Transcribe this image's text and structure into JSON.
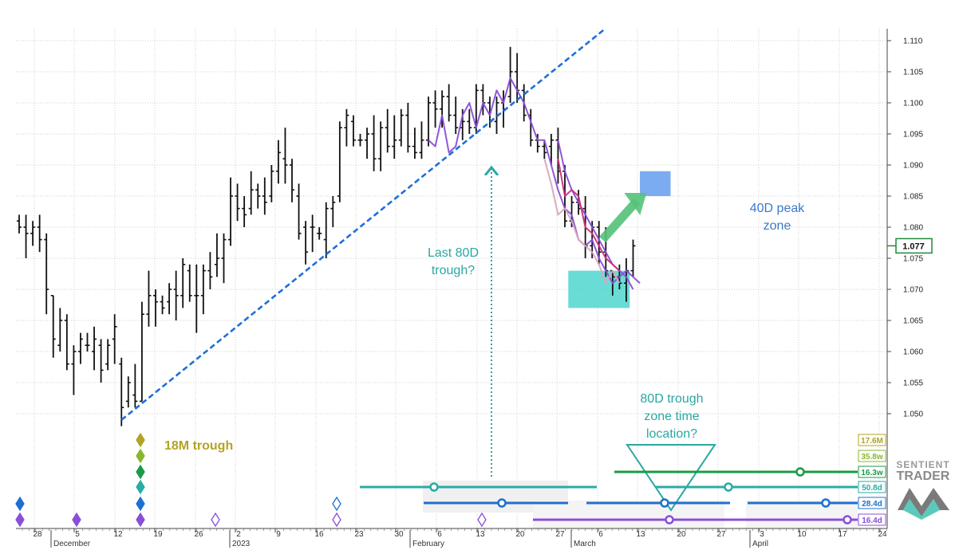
{
  "chart_data": {
    "type": "ohlc",
    "ylim": [
      1.046,
      1.112
    ],
    "y_ticks": [
      "1.050",
      "1.055",
      "1.060",
      "1.065",
      "1.070",
      "1.075",
      "1.080",
      "1.085",
      "1.090",
      "1.095",
      "1.100",
      "1.105",
      "1.110"
    ],
    "current_price": "1.077",
    "x_day_ticks": [
      "28",
      "5",
      "12",
      "19",
      "26",
      "2",
      "9",
      "16",
      "23",
      "30",
      "6",
      "13",
      "20",
      "27",
      "6",
      "13",
      "20",
      "27",
      "3",
      "10",
      "17",
      "24"
    ],
    "month_labels": [
      "December",
      "2023",
      "February",
      "March",
      "April"
    ],
    "bars": [
      {
        "o": 1.081,
        "h": 1.082,
        "l": 1.079,
        "c": 1.08
      },
      {
        "o": 1.08,
        "h": 1.082,
        "l": 1.075,
        "c": 1.079
      },
      {
        "o": 1.079,
        "h": 1.081,
        "l": 1.077,
        "c": 1.08
      },
      {
        "o": 1.08,
        "h": 1.082,
        "l": 1.076,
        "c": 1.078
      },
      {
        "o": 1.078,
        "h": 1.079,
        "l": 1.066,
        "c": 1.07
      },
      {
        "o": 1.069,
        "h": 1.069,
        "l": 1.059,
        "c": 1.062
      },
      {
        "o": 1.061,
        "h": 1.067,
        "l": 1.06,
        "c": 1.065
      },
      {
        "o": 1.065,
        "h": 1.066,
        "l": 1.057,
        "c": 1.058
      },
      {
        "o": 1.058,
        "h": 1.061,
        "l": 1.053,
        "c": 1.06
      },
      {
        "o": 1.06,
        "h": 1.063,
        "l": 1.058,
        "c": 1.062
      },
      {
        "o": 1.061,
        "h": 1.063,
        "l": 1.06,
        "c": 1.061
      },
      {
        "o": 1.06,
        "h": 1.064,
        "l": 1.057,
        "c": 1.062
      },
      {
        "o": 1.061,
        "h": 1.062,
        "l": 1.055,
        "c": 1.057
      },
      {
        "o": 1.058,
        "h": 1.062,
        "l": 1.057,
        "c": 1.061
      },
      {
        "o": 1.062,
        "h": 1.066,
        "l": 1.058,
        "c": 1.064
      },
      {
        "o": 1.058,
        "h": 1.059,
        "l": 1.048,
        "c": 1.051
      },
      {
        "o": 1.052,
        "h": 1.056,
        "l": 1.051,
        "c": 1.055
      },
      {
        "o": 1.053,
        "h": 1.058,
        "l": 1.051,
        "c": 1.052
      },
      {
        "o": 1.052,
        "h": 1.068,
        "l": 1.052,
        "c": 1.066
      },
      {
        "o": 1.066,
        "h": 1.073,
        "l": 1.064,
        "c": 1.069
      },
      {
        "o": 1.069,
        "h": 1.07,
        "l": 1.064,
        "c": 1.068
      },
      {
        "o": 1.068,
        "h": 1.069,
        "l": 1.066,
        "c": 1.067
      },
      {
        "o": 1.068,
        "h": 1.071,
        "l": 1.066,
        "c": 1.07
      },
      {
        "o": 1.07,
        "h": 1.073,
        "l": 1.065,
        "c": 1.069
      },
      {
        "o": 1.069,
        "h": 1.075,
        "l": 1.067,
        "c": 1.074
      },
      {
        "o": 1.073,
        "h": 1.074,
        "l": 1.068,
        "c": 1.069
      },
      {
        "o": 1.069,
        "h": 1.074,
        "l": 1.063,
        "c": 1.069
      },
      {
        "o": 1.069,
        "h": 1.074,
        "l": 1.066,
        "c": 1.073
      },
      {
        "o": 1.073,
        "h": 1.076,
        "l": 1.07,
        "c": 1.072
      },
      {
        "o": 1.074,
        "h": 1.079,
        "l": 1.072,
        "c": 1.075
      },
      {
        "o": 1.075,
        "h": 1.079,
        "l": 1.071,
        "c": 1.078
      },
      {
        "o": 1.078,
        "h": 1.088,
        "l": 1.077,
        "c": 1.085
      },
      {
        "o": 1.085,
        "h": 1.087,
        "l": 1.081,
        "c": 1.083
      },
      {
        "o": 1.083,
        "h": 1.085,
        "l": 1.08,
        "c": 1.082
      },
      {
        "o": 1.083,
        "h": 1.089,
        "l": 1.082,
        "c": 1.086
      },
      {
        "o": 1.086,
        "h": 1.087,
        "l": 1.083,
        "c": 1.085
      },
      {
        "o": 1.085,
        "h": 1.088,
        "l": 1.082,
        "c": 1.084
      },
      {
        "o": 1.085,
        "h": 1.09,
        "l": 1.084,
        "c": 1.089
      },
      {
        "o": 1.089,
        "h": 1.094,
        "l": 1.087,
        "c": 1.092
      },
      {
        "o": 1.091,
        "h": 1.096,
        "l": 1.087,
        "c": 1.09
      },
      {
        "o": 1.09,
        "h": 1.091,
        "l": 1.084,
        "c": 1.086
      },
      {
        "o": 1.085,
        "h": 1.087,
        "l": 1.078,
        "c": 1.079
      },
      {
        "o": 1.08,
        "h": 1.081,
        "l": 1.074,
        "c": 1.076
      },
      {
        "o": 1.08,
        "h": 1.082,
        "l": 1.076,
        "c": 1.08
      },
      {
        "o": 1.079,
        "h": 1.08,
        "l": 1.078,
        "c": 1.079
      },
      {
        "o": 1.078,
        "h": 1.084,
        "l": 1.075,
        "c": 1.083
      },
      {
        "o": 1.083,
        "h": 1.085,
        "l": 1.08,
        "c": 1.084
      },
      {
        "o": 1.085,
        "h": 1.097,
        "l": 1.084,
        "c": 1.096
      },
      {
        "o": 1.096,
        "h": 1.099,
        "l": 1.093,
        "c": 1.098
      },
      {
        "o": 1.097,
        "h": 1.098,
        "l": 1.093,
        "c": 1.094
      },
      {
        "o": 1.094,
        "h": 1.095,
        "l": 1.093,
        "c": 1.094
      },
      {
        "o": 1.094,
        "h": 1.096,
        "l": 1.091,
        "c": 1.095
      },
      {
        "o": 1.095,
        "h": 1.098,
        "l": 1.089,
        "c": 1.091
      },
      {
        "o": 1.091,
        "h": 1.097,
        "l": 1.089,
        "c": 1.096
      },
      {
        "o": 1.096,
        "h": 1.099,
        "l": 1.092,
        "c": 1.093
      },
      {
        "o": 1.093,
        "h": 1.098,
        "l": 1.091,
        "c": 1.094
      },
      {
        "o": 1.094,
        "h": 1.099,
        "l": 1.093,
        "c": 1.098
      },
      {
        "o": 1.098,
        "h": 1.1,
        "l": 1.092,
        "c": 1.093
      },
      {
        "o": 1.093,
        "h": 1.096,
        "l": 1.091,
        "c": 1.092
      },
      {
        "o": 1.092,
        "h": 1.097,
        "l": 1.091,
        "c": 1.094
      },
      {
        "o": 1.094,
        "h": 1.101,
        "l": 1.093,
        "c": 1.1
      },
      {
        "o": 1.1,
        "h": 1.102,
        "l": 1.096,
        "c": 1.099
      },
      {
        "o": 1.099,
        "h": 1.102,
        "l": 1.096,
        "c": 1.101
      },
      {
        "o": 1.101,
        "h": 1.103,
        "l": 1.097,
        "c": 1.098
      },
      {
        "o": 1.098,
        "h": 1.101,
        "l": 1.095,
        "c": 1.096
      },
      {
        "o": 1.096,
        "h": 1.099,
        "l": 1.094,
        "c": 1.097
      },
      {
        "o": 1.097,
        "h": 1.099,
        "l": 1.095,
        "c": 1.096
      },
      {
        "o": 1.096,
        "h": 1.103,
        "l": 1.095,
        "c": 1.102
      },
      {
        "o": 1.102,
        "h": 1.103,
        "l": 1.098,
        "c": 1.1
      },
      {
        "o": 1.1,
        "h": 1.101,
        "l": 1.096,
        "c": 1.097
      },
      {
        "o": 1.097,
        "h": 1.101,
        "l": 1.095,
        "c": 1.1
      },
      {
        "o": 1.1,
        "h": 1.102,
        "l": 1.096,
        "c": 1.099
      },
      {
        "o": 1.101,
        "h": 1.109,
        "l": 1.1,
        "c": 1.105
      },
      {
        "o": 1.105,
        "h": 1.108,
        "l": 1.1,
        "c": 1.102
      },
      {
        "o": 1.102,
        "h": 1.103,
        "l": 1.097,
        "c": 1.098
      },
      {
        "o": 1.098,
        "h": 1.099,
        "l": 1.093,
        "c": 1.094
      },
      {
        "o": 1.094,
        "h": 1.095,
        "l": 1.092,
        "c": 1.093
      },
      {
        "o": 1.093,
        "h": 1.094,
        "l": 1.091,
        "c": 1.092
      },
      {
        "o": 1.093,
        "h": 1.095,
        "l": 1.09,
        "c": 1.094
      },
      {
        "o": 1.094,
        "h": 1.096,
        "l": 1.087,
        "c": 1.089
      },
      {
        "o": 1.089,
        "h": 1.09,
        "l": 1.08,
        "c": 1.081
      },
      {
        "o": 1.081,
        "h": 1.085,
        "l": 1.08,
        "c": 1.084
      },
      {
        "o": 1.084,
        "h": 1.086,
        "l": 1.082,
        "c": 1.083
      },
      {
        "o": 1.083,
        "h": 1.085,
        "l": 1.075,
        "c": 1.077
      },
      {
        "o": 1.077,
        "h": 1.081,
        "l": 1.075,
        "c": 1.08
      },
      {
        "o": 1.08,
        "h": 1.081,
        "l": 1.074,
        "c": 1.076
      },
      {
        "o": 1.076,
        "h": 1.08,
        "l": 1.072,
        "c": 1.073
      },
      {
        "o": 1.073,
        "h": 1.073,
        "l": 1.069,
        "c": 1.072
      },
      {
        "o": 1.072,
        "h": 1.074,
        "l": 1.07,
        "c": 1.071
      },
      {
        "o": 1.071,
        "h": 1.075,
        "l": 1.068,
        "c": 1.073
      },
      {
        "o": 1.073,
        "h": 1.078,
        "l": 1.072,
        "c": 1.077
      }
    ],
    "trendline": {
      "from": [
        15,
        1.049
      ],
      "to": [
        86,
        1.112
      ],
      "color": "#1e6fd9",
      "style": "dashed"
    },
    "projections": [
      {
        "color": "#8a4fd6",
        "points": [
          [
            60,
            1.094
          ],
          [
            61,
            1.093
          ],
          [
            62,
            1.098
          ],
          [
            63,
            1.092
          ],
          [
            64,
            1.093
          ],
          [
            65,
            1.098
          ],
          [
            66,
            1.1
          ],
          [
            67,
            1.096
          ],
          [
            68,
            1.1
          ],
          [
            69,
            1.098
          ],
          [
            70,
            1.102
          ],
          [
            71,
            1.1
          ],
          [
            72,
            1.104
          ],
          [
            73,
            1.102
          ],
          [
            74,
            1.1
          ],
          [
            75,
            1.097
          ],
          [
            76,
            1.094
          ],
          [
            77,
            1.094
          ],
          [
            78,
            1.09
          ],
          [
            79,
            1.086
          ],
          [
            80,
            1.083
          ],
          [
            81,
            1.082
          ],
          [
            82,
            1.078
          ],
          [
            83,
            1.077
          ],
          [
            84,
            1.078
          ],
          [
            85,
            1.075
          ],
          [
            86,
            1.073
          ],
          [
            87,
            1.071
          ],
          [
            88,
            1.072
          ],
          [
            89,
            1.073
          ],
          [
            90,
            1.072
          ],
          [
            91,
            1.071
          ]
        ]
      },
      {
        "color": "#8a4fd6",
        "points": [
          [
            79,
            1.094
          ],
          [
            80,
            1.089
          ],
          [
            81,
            1.086
          ],
          [
            82,
            1.084
          ],
          [
            83,
            1.082
          ],
          [
            84,
            1.08
          ],
          [
            85,
            1.078
          ],
          [
            86,
            1.076
          ],
          [
            87,
            1.074
          ],
          [
            88,
            1.073
          ],
          [
            89,
            1.072
          ],
          [
            90,
            1.07
          ]
        ]
      },
      {
        "color": "#cc2f7a",
        "points": [
          [
            79,
            1.091
          ],
          [
            80,
            1.085
          ],
          [
            81,
            1.086
          ],
          [
            82,
            1.085
          ],
          [
            83,
            1.08
          ],
          [
            84,
            1.079
          ],
          [
            85,
            1.077
          ],
          [
            86,
            1.075
          ],
          [
            87,
            1.074
          ],
          [
            88,
            1.073
          ]
        ]
      },
      {
        "color": "#d8a6bf",
        "points": [
          [
            77,
            1.091
          ],
          [
            78,
            1.087
          ],
          [
            79,
            1.082
          ],
          [
            80,
            1.083
          ],
          [
            81,
            1.081
          ],
          [
            82,
            1.078
          ],
          [
            83,
            1.077
          ],
          [
            84,
            1.076
          ],
          [
            85,
            1.074
          ],
          [
            86,
            1.071
          ],
          [
            87,
            1.073
          ],
          [
            88,
            1.071
          ]
        ]
      }
    ],
    "trough_box": {
      "x0": 80.5,
      "x1": 89.5,
      "y0": 1.067,
      "y1": 1.073,
      "color": "#4fd6cf"
    },
    "peak_box": {
      "x0": 91,
      "x1": 95.5,
      "y0": 1.085,
      "y1": 1.089,
      "color": "#6da3ef"
    },
    "annotations": [
      {
        "text": "18M trough",
        "color": "#b3a322"
      },
      {
        "text": "Last 80D trough?",
        "lines": [
          "Last 80D",
          "trough?"
        ],
        "color": "#2aa7a2"
      },
      {
        "text": "80D trough zone time location?",
        "lines": [
          "80D trough",
          "zone time",
          "location?"
        ],
        "color": "#2aa7a2"
      },
      {
        "text": "40D peak zone",
        "lines": [
          "40D peak",
          "zone"
        ],
        "color": "#3b7ac9"
      }
    ],
    "cycle_labels": [
      {
        "text": "17.6M",
        "color": "#b3a322"
      },
      {
        "text": "35.8w",
        "color": "#86b82f"
      },
      {
        "text": "16.3w",
        "color": "#1c9a48"
      },
      {
        "text": "50.8d",
        "color": "#2aaba6"
      },
      {
        "text": "28.4d",
        "color": "#1f6fd1"
      },
      {
        "text": "16.4d",
        "color": "#8a4fd6"
      }
    ]
  },
  "logo": {
    "line1": "SENTIENT",
    "line2": "TRADER"
  }
}
